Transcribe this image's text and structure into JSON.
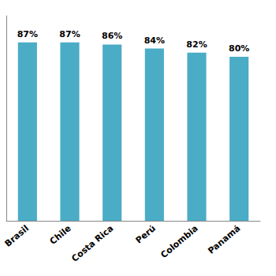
{
  "chart_data": {
    "type": "bar",
    "categories": [
      "Brasil",
      "Chile",
      "Costa Rica",
      "Perú",
      "Colombia",
      "Panamá"
    ],
    "values": [
      87,
      87,
      86,
      84,
      82,
      80
    ],
    "value_labels": [
      "87%",
      "87%",
      "86%",
      "84%",
      "82%",
      "80%"
    ],
    "color": "#4bacc6",
    "ylim": [
      0,
      100
    ],
    "grid": false,
    "data_labels": true,
    "tick_labels": "x"
  }
}
